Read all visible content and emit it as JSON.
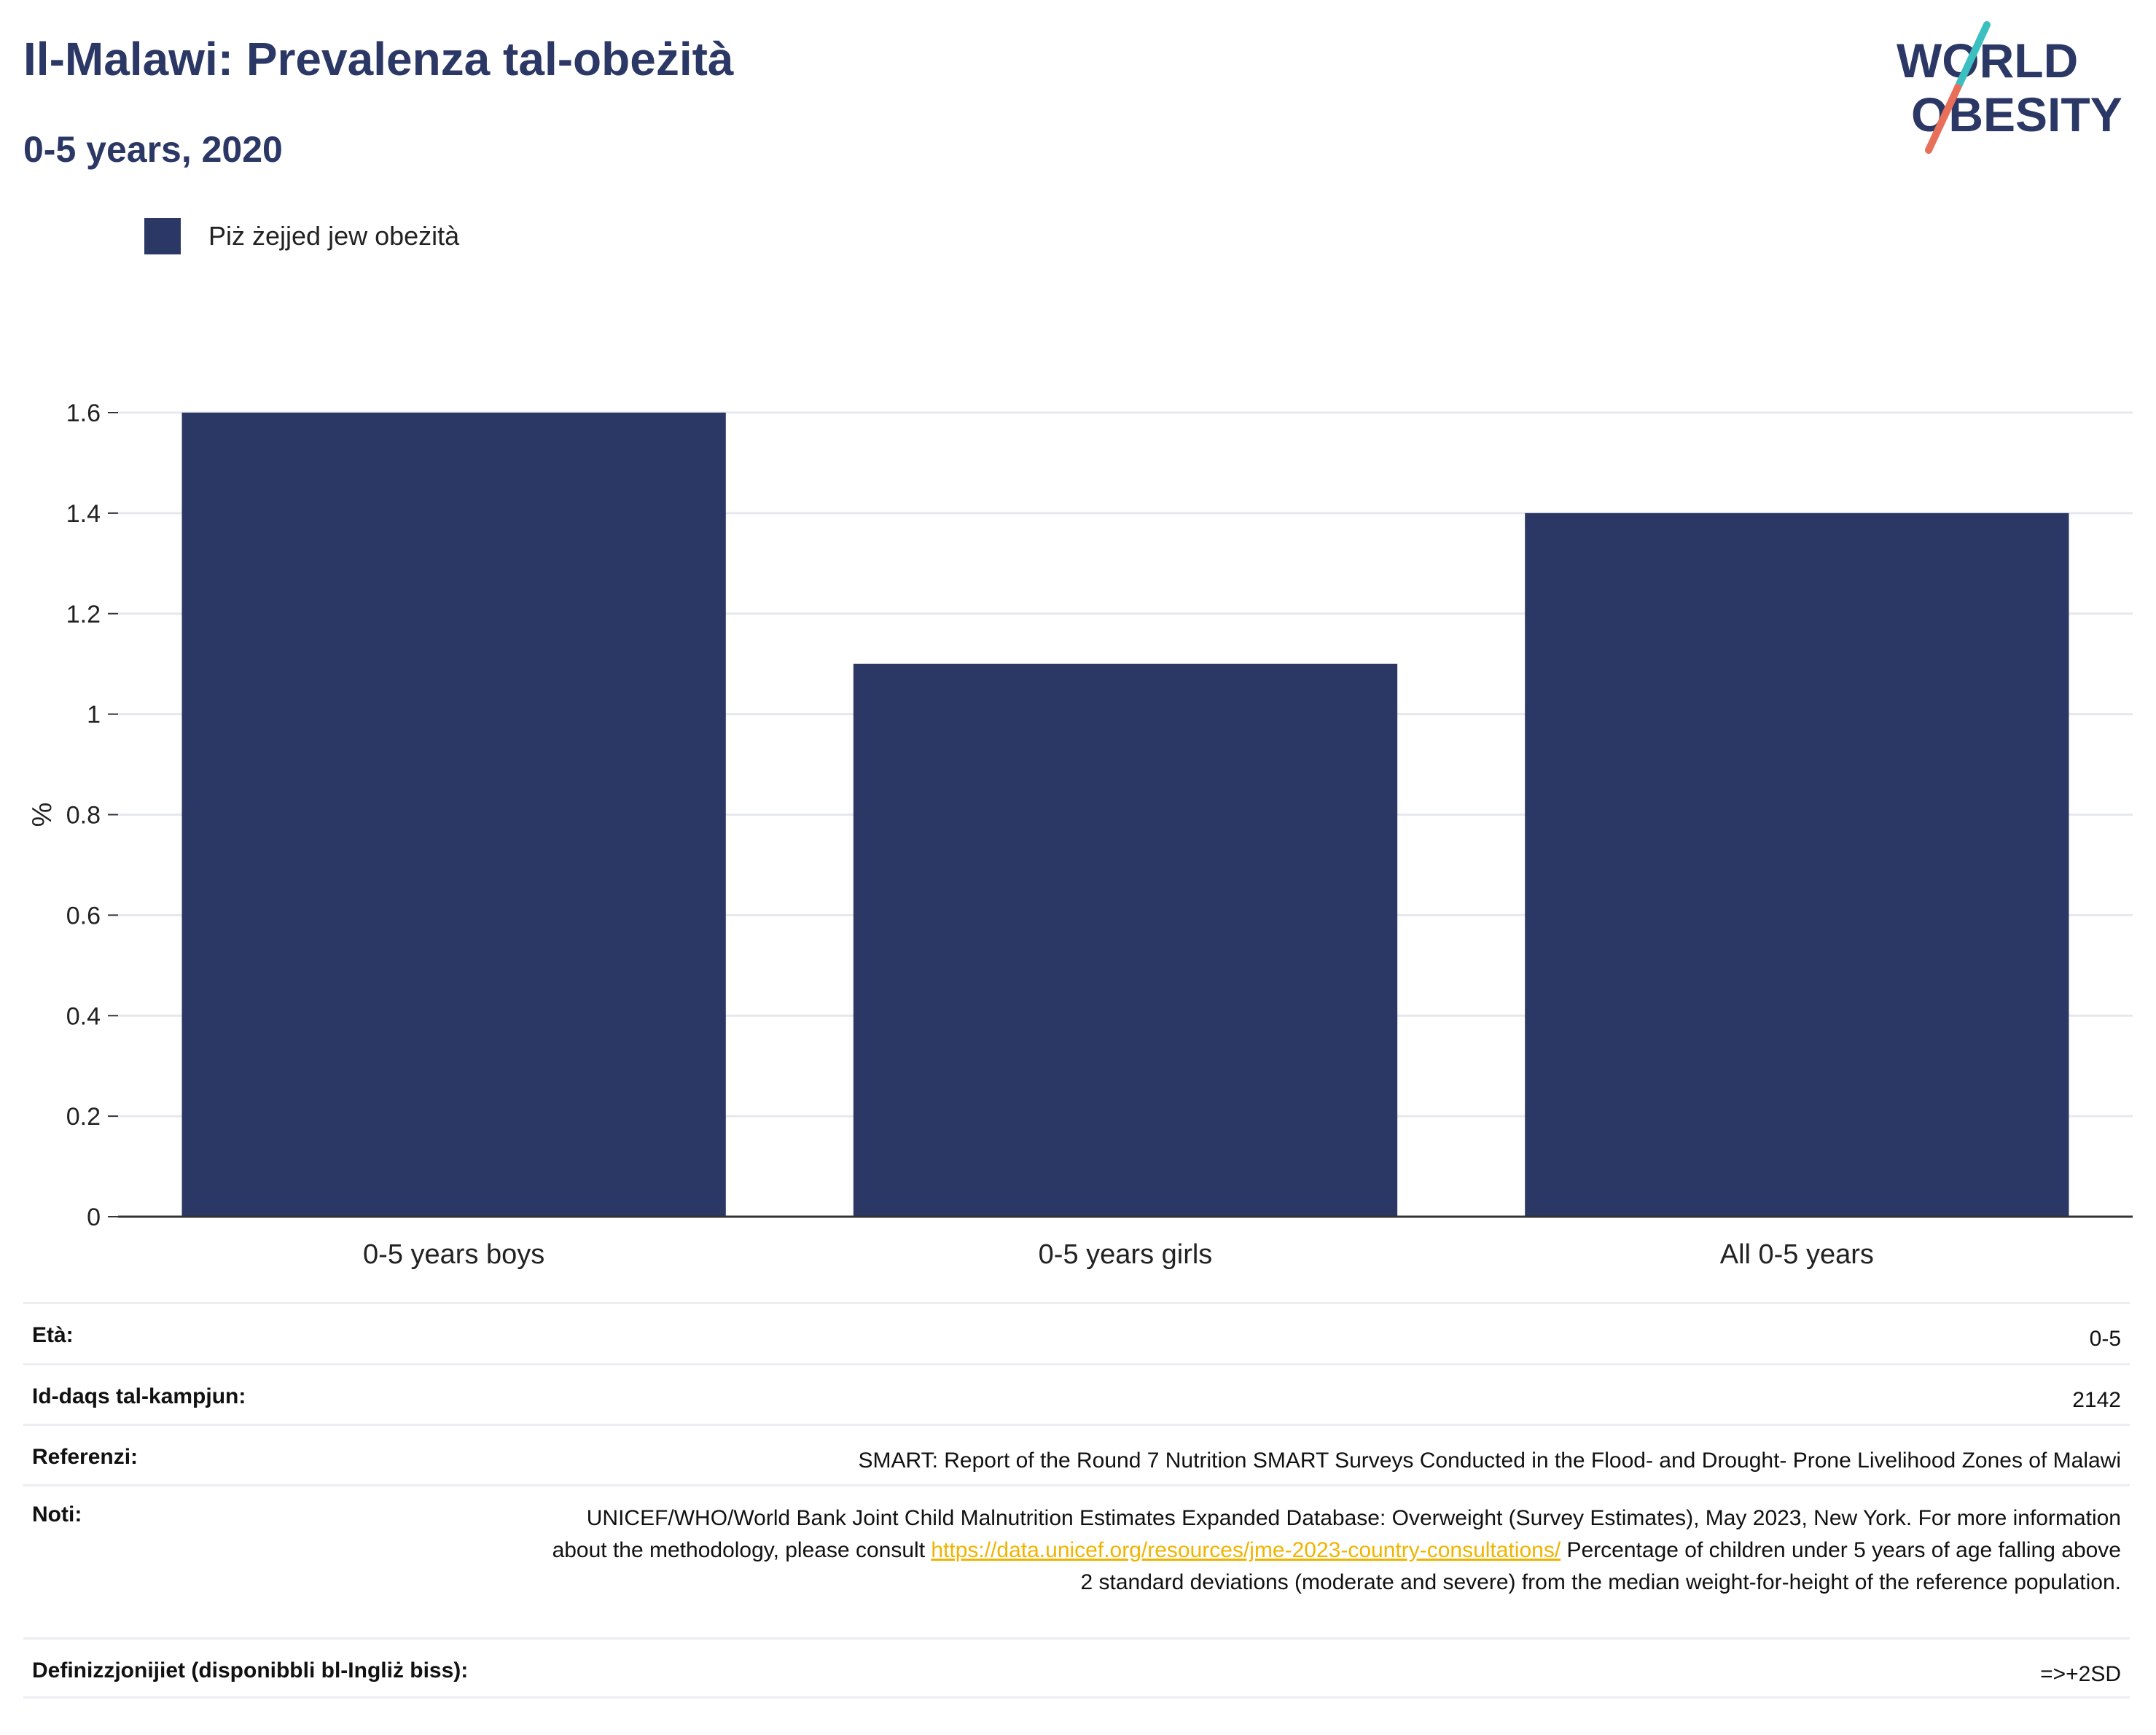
{
  "header": {
    "title": "Il-Malawi: Prevalenza tal-obeżità",
    "subtitle": "0-5 years, 2020"
  },
  "logo": {
    "line1": "WORLD",
    "line2": "OBESITY",
    "colors": {
      "text": "#2b3764",
      "slash_top": "#3bbfc0",
      "slash_bottom": "#e8705a"
    }
  },
  "legend": {
    "label": "Piż żejjed jew obeżità",
    "color": "#2b3764"
  },
  "chart_data": {
    "type": "bar",
    "categories": [
      "0-5 years boys",
      "0-5 years girls",
      "All 0-5 years"
    ],
    "series": [
      {
        "name": "Piż żejjed jew obeżità",
        "values": [
          1.6,
          1.1,
          1.4
        ],
        "color": "#2b3764"
      }
    ],
    "ylabel": "%",
    "ylim": [
      0,
      1.6
    ],
    "yticks": [
      0,
      0.2,
      0.4,
      0.6,
      0.8,
      1,
      1.2,
      1.4,
      1.6
    ],
    "ytick_labels": [
      "0",
      "0.2",
      "0.4",
      "0.6",
      "0.8",
      "1",
      "1.2",
      "1.4",
      "1.6"
    ],
    "grid": true,
    "legend_position": "top-left"
  },
  "info": {
    "rows": [
      {
        "label": "Età:",
        "value": "0-5"
      },
      {
        "label": "Id-daqs tal-kampjun:",
        "value": "2142"
      },
      {
        "label": "Referenzi:",
        "value": "SMART: Report of the Round 7 Nutrition SMART Surveys Conducted in the Flood- and Drought- Prone Livelihood Zones of Malawi"
      },
      {
        "label": "Noti:",
        "value_before": "UNICEF/WHO/World Bank Joint Child Malnutrition Estimates Expanded Database: Overweight (Survey Estimates), May 2023, New York. For more information about the methodology, please consult ",
        "link": "https://data.unicef.org/resources/jme-2023-country-consultations/",
        "value_after": " Percentage of children under 5 years of age falling above 2 standard deviations (moderate and severe) from the median weight-for-height of the reference population."
      },
      {
        "label": "Definizzjonijiet (disponibbli bl-Ingliż biss):",
        "value": "=>+2SD"
      }
    ]
  }
}
